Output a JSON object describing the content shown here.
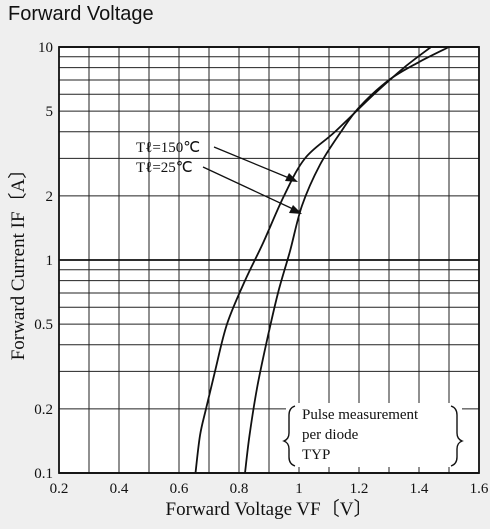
{
  "page_title": "Forward Voltage",
  "chart_data": {
    "type": "line",
    "title": "Forward Voltage",
    "xlabel": "Forward Voltage VF〔V〕",
    "ylabel": "Forward Current IF〔A〕",
    "xscale": "linear",
    "yscale": "log",
    "xlim": [
      0.2,
      1.6
    ],
    "ylim": [
      0.1,
      10
    ],
    "x_ticks": [
      0.2,
      0.4,
      0.6,
      0.8,
      1,
      1.2,
      1.4,
      1.6
    ],
    "x_tick_labels": [
      "0.2",
      "0.4",
      "0.6",
      "0.8",
      "1",
      "1.2",
      "1.4",
      "1.6"
    ],
    "y_ticks": [
      0.1,
      0.2,
      0.5,
      1,
      2,
      5,
      10
    ],
    "y_tick_labels": [
      "0.1",
      "0.2",
      "0.5",
      "1",
      "2",
      "5",
      "10"
    ],
    "grid": true,
    "series": [
      {
        "name": "Tℓ=150℃",
        "x": [
          0.655,
          0.67,
          0.69,
          0.72,
          0.76,
          0.82,
          0.88,
          0.95,
          1.02,
          1.12,
          1.25,
          1.35,
          1.44
        ],
        "y": [
          0.1,
          0.15,
          0.2,
          0.3,
          0.5,
          0.8,
          1.2,
          2.0,
          3.0,
          4.0,
          6.0,
          8.0,
          10.0
        ]
      },
      {
        "name": "Tℓ=25℃",
        "x": [
          0.82,
          0.835,
          0.86,
          0.89,
          0.93,
          0.97,
          1.01,
          1.07,
          1.14,
          1.2,
          1.3,
          1.4,
          1.5
        ],
        "y": [
          0.1,
          0.15,
          0.25,
          0.4,
          0.7,
          1.1,
          1.8,
          2.8,
          4.0,
          5.2,
          7.0,
          8.5,
          10.0
        ]
      }
    ],
    "annotations": {
      "label_150": "Tℓ=150℃",
      "label_25": "Tℓ=25℃",
      "note_line1": "Pulse measurement",
      "note_line2": "per diode",
      "note_line3": "TYP"
    }
  }
}
